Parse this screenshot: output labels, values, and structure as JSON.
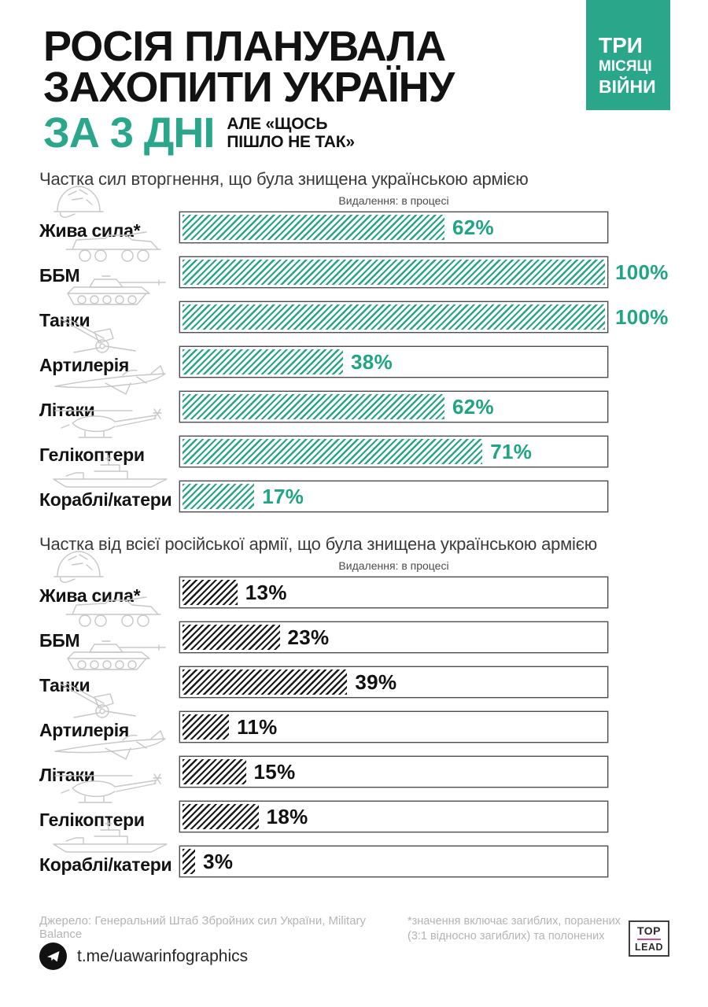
{
  "header": {
    "title_line1": "РОСІЯ ПЛАНУВАЛА",
    "title_line2": "ЗАХОПИТИ УКРАЇНУ",
    "title_accent": "ЗА 3 ДНІ",
    "subtitle_line1": "АЛЕ «ЩОСЬ",
    "subtitle_line2": "ПІШЛО НЕ ТАК»",
    "badge": {
      "line1": "ТРИ",
      "line2": "МІСЯЦІ",
      "line3": "ВІЙНИ"
    }
  },
  "colors": {
    "accent": "#2AA78A",
    "bar_green": "#27A585",
    "bar_black": "#1A1A1A",
    "green_value_text": "#1FA583",
    "black_value_text": "#111111",
    "track_border": "#4E4E4E",
    "icon_gray": "#C7C7C7",
    "footer_gray": "#B4B4B4",
    "logo_pink": "#C9508F"
  },
  "chart_data": [
    {
      "type": "bar",
      "title": "Частка сил вторгнення, що була знищена українською армією",
      "progress_label": "Видалення: в процесі",
      "categories": [
        "Жива сила*",
        "ББМ",
        "Танки",
        "Артилерія",
        "Літаки",
        "Гелікоптери",
        "Кораблі/катери"
      ],
      "icons": [
        "helmet",
        "apc",
        "tank",
        "artillery",
        "jet",
        "helicopter",
        "ship"
      ],
      "values": [
        62,
        100,
        100,
        38,
        62,
        71,
        17
      ],
      "unit": "%",
      "xlim": [
        0,
        100
      ],
      "bar_color": "#27A585",
      "value_color": "#1FA583",
      "grid": false,
      "orientation": "horizontal",
      "value_label_position": "after fill; outside track when 100%"
    },
    {
      "type": "bar",
      "title": "Частка від всієї російської армії, що була знищена українською армією",
      "progress_label": "Видалення: в процесі",
      "categories": [
        "Жива сила*",
        "ББМ",
        "Танки",
        "Артилерія",
        "Літаки",
        "Гелікоптери",
        "Кораблі/катери"
      ],
      "icons": [
        "helmet",
        "apc",
        "tank",
        "artillery",
        "jet",
        "helicopter",
        "ship"
      ],
      "values": [
        13,
        23,
        39,
        11,
        15,
        18,
        3
      ],
      "unit": "%",
      "xlim": [
        0,
        100
      ],
      "bar_color": "#1A1A1A",
      "value_color": "#111111",
      "grid": false,
      "orientation": "horizontal",
      "value_label_position": "after fill inside track"
    }
  ],
  "footer": {
    "source": "Джерело: Генеральний Штаб Збройних сил України, Military Balance",
    "footnote_line1": "*значення включає загиблих, поранених",
    "footnote_line2": "(3:1 відносно загиблих) та полонених",
    "telegram_handle": "t.me/uawarinfographics",
    "logo": {
      "top": "TOP",
      "bottom": "LEAD"
    }
  }
}
